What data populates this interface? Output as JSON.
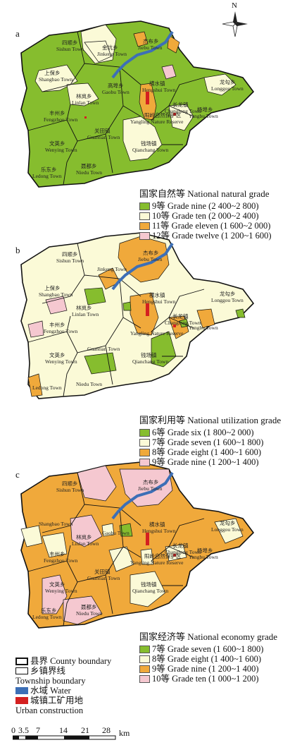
{
  "panels": [
    {
      "letter": "a",
      "legend_title": "国家自然等 National natural grade",
      "items": [
        {
          "label": "9等 Grade nine (2 400~2 800)",
          "color": "#86bd2e"
        },
        {
          "label": "10等 Grade ten (2 000~2 400)",
          "color": "#fbfad7"
        },
        {
          "label": "11等 Grade eleven (1 600~2 000)",
          "color": "#f0a93b"
        },
        {
          "label": "12等 Grade twelve (1 200~1 600)",
          "color": "#f5c8d0"
        }
      ]
    },
    {
      "letter": "b",
      "legend_title": "国家利用等 National utilization grade",
      "items": [
        {
          "label": "6等 Grade six (1 800~2 000)",
          "color": "#86bd2e"
        },
        {
          "label": "7等 Grade seven (1 600~1 800)",
          "color": "#fbfad7"
        },
        {
          "label": "8等 Grade eight (1 400~1 600)",
          "color": "#f0a93b"
        },
        {
          "label": "9等 Grade nine (1 200~1 400)",
          "color": "#f5c8d0"
        }
      ]
    },
    {
      "letter": "c",
      "legend_title": "国家经济等 National economy grade",
      "items": [
        {
          "label": "7等 Grade seven (1 600~1 800)",
          "color": "#86bd2e"
        },
        {
          "label": "8等 Grade eight (1 400~1 600)",
          "color": "#fbfad7"
        },
        {
          "label": "9等 Grade nine (1 200~1 400)",
          "color": "#f0a93b"
        },
        {
          "label": "10等 Grade ten (1 000~1 200)",
          "color": "#f5c8d0"
        }
      ]
    }
  ],
  "north_label": "N",
  "towns": {
    "sishun_cn": "四顺乡",
    "sishun": "Sishun Town",
    "jiebu_cn": "杰布乡",
    "jiebu": "Jiebu Town",
    "jinkeng_cn": "金坑乡",
    "jinkeng": "Jinkeng Town",
    "shangbao_cn": "上保乡",
    "shangbao": "Shangbao Town",
    "linlan_cn": "林岚乡",
    "linlan": "Linlan Town",
    "gaobu_cn": "高埠乡",
    "gaobu": "Gaobu Town",
    "hengshui_cn": "横水镇",
    "hengshui": "Hengshui Town",
    "longgou_cn": "龙勾乡",
    "longgou": "Longgou Town",
    "fengzhou_cn": "丰州乡",
    "fengzhou": "Fengzhou Town",
    "changlong_cn": "长龙镇",
    "changlong": "Changlong Town",
    "yangling_cn": "阳岭自然保护区",
    "yangling": "Yangling Nature Reserve",
    "yangbu_cn": "杨埠乡",
    "yangbu": "Yangbu Town",
    "guantian_cn": "关田镇",
    "guantian": "Guantian Town",
    "qianchang_cn": "钱场镇",
    "qianchang": "Qianchang Town",
    "wenying_cn": "文英乡",
    "wenying": "Wenying Town",
    "ledong_cn": "乐东乡",
    "ledong": "Ledong Town",
    "niedu_cn": "聂都乡",
    "niedu": "Niedu Town"
  },
  "boundary_legend": {
    "county_cn": "县界",
    "county": "County boundary",
    "township_cn": "乡镇界线",
    "township": "Township boundary",
    "water_cn": "水域",
    "water": "Water",
    "urban_cn": "城镇工矿用地",
    "urban": "Urban construction",
    "water_color": "#3d6fb6",
    "urban_color": "#d42020"
  },
  "scale_bar": {
    "ticks": [
      "0",
      "3.5",
      "7",
      "14",
      "21",
      "28"
    ],
    "unit": "km"
  }
}
